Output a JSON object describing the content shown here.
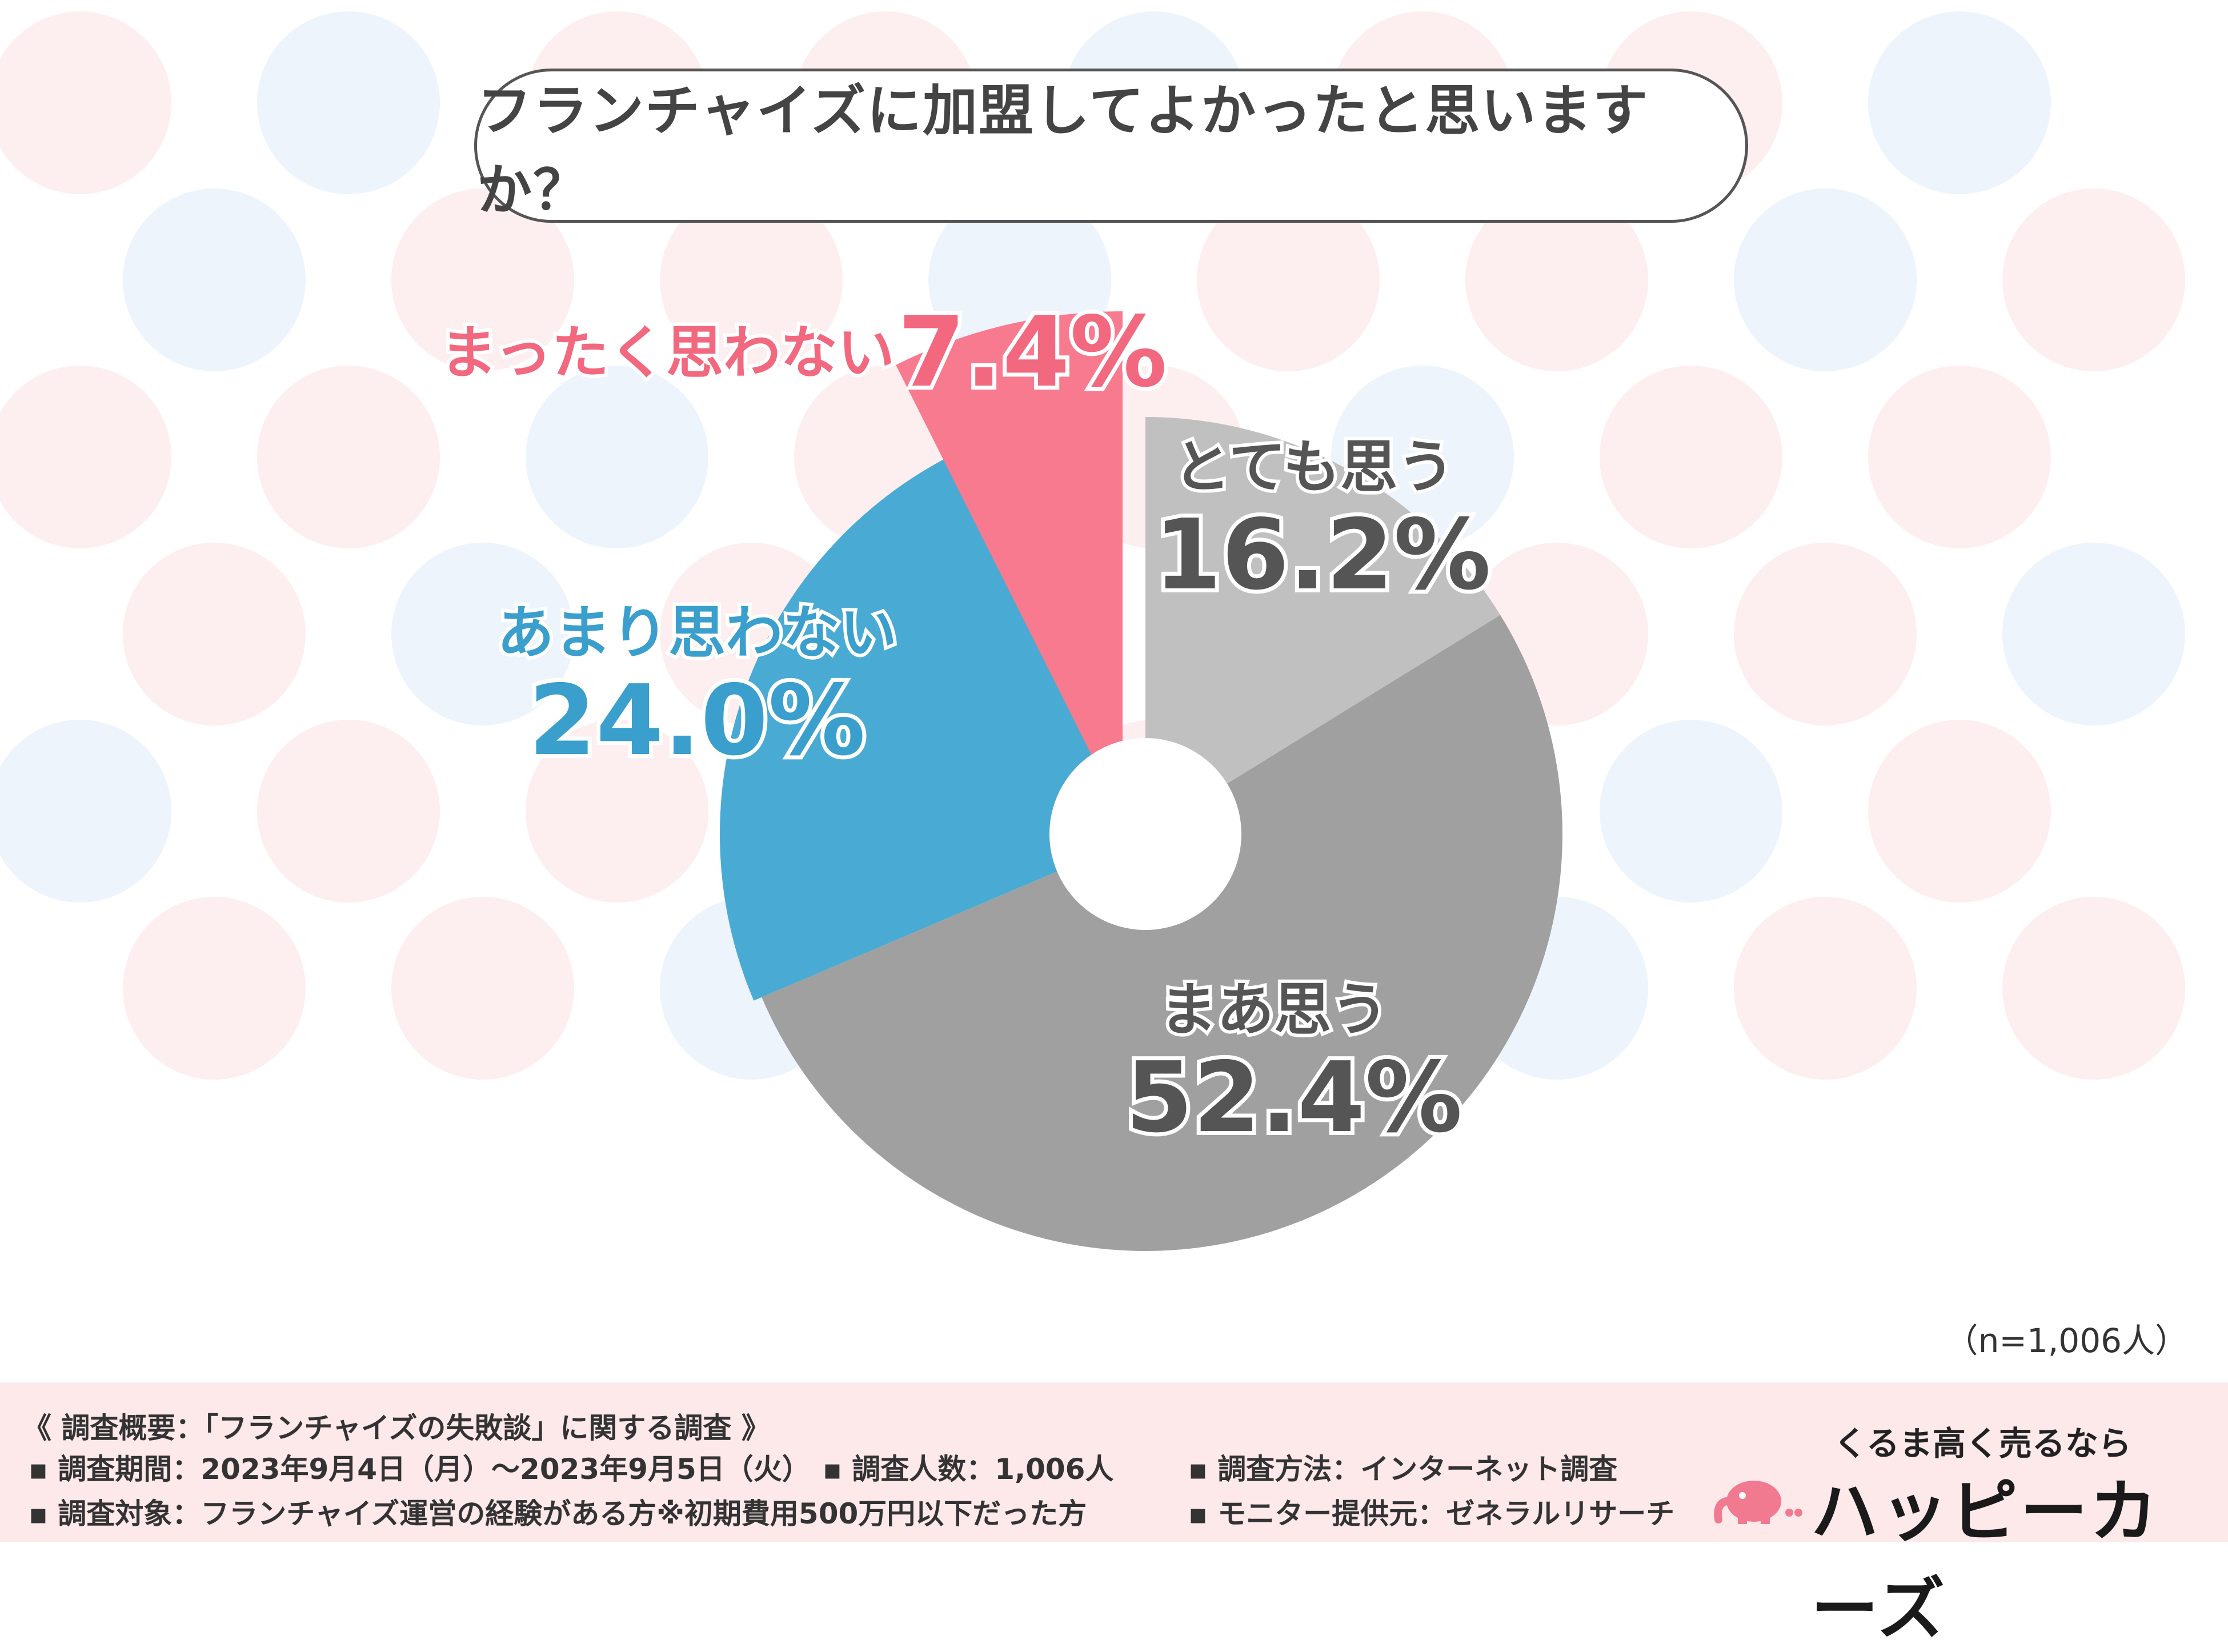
{
  "title": "フランチャイズに加盟してよかったと思いますか？",
  "sample_size": "（n=1,006人）",
  "chart_data": {
    "type": "pie",
    "title": "フランチャイズに加盟してよかったと思いますか？",
    "categories": [
      "とても思う",
      "まあ思う",
      "あまり思わない",
      "まったく思わない"
    ],
    "values": [
      16.2,
      52.4,
      24.0,
      7.4
    ],
    "value_labels": [
      "16.2%",
      "52.4%",
      "24.0%",
      "7.4%"
    ],
    "colors": [
      "#c0c0c0",
      "#a0a0a0",
      "#49abd4",
      "#f87a8e"
    ],
    "label_colors": [
      "#555555",
      "#555555",
      "#3a9fcc",
      "#f2687f"
    ],
    "exploded": "まったく思わない",
    "donut": true
  },
  "footer": {
    "title": "《 調査概要：「フランチャイズの失敗談」に関する調査 》",
    "items": [
      "▪ 調査期間：2023年9月4日（月）〜2023年9月5日（火）",
      "▪ 調査人数：1,006人",
      "▪ 調査方法：インターネット調査",
      "▪ 調査対象：フランチャイズ運営の経験がある方※初期費用500万円以下だった方",
      "▪ モニター提供元：ゼネラルリサーチ"
    ]
  },
  "brand": {
    "tagline": "くるま高く売るなら",
    "name": "ハッピーカーズ",
    "icon": "elephant-logo-icon"
  }
}
